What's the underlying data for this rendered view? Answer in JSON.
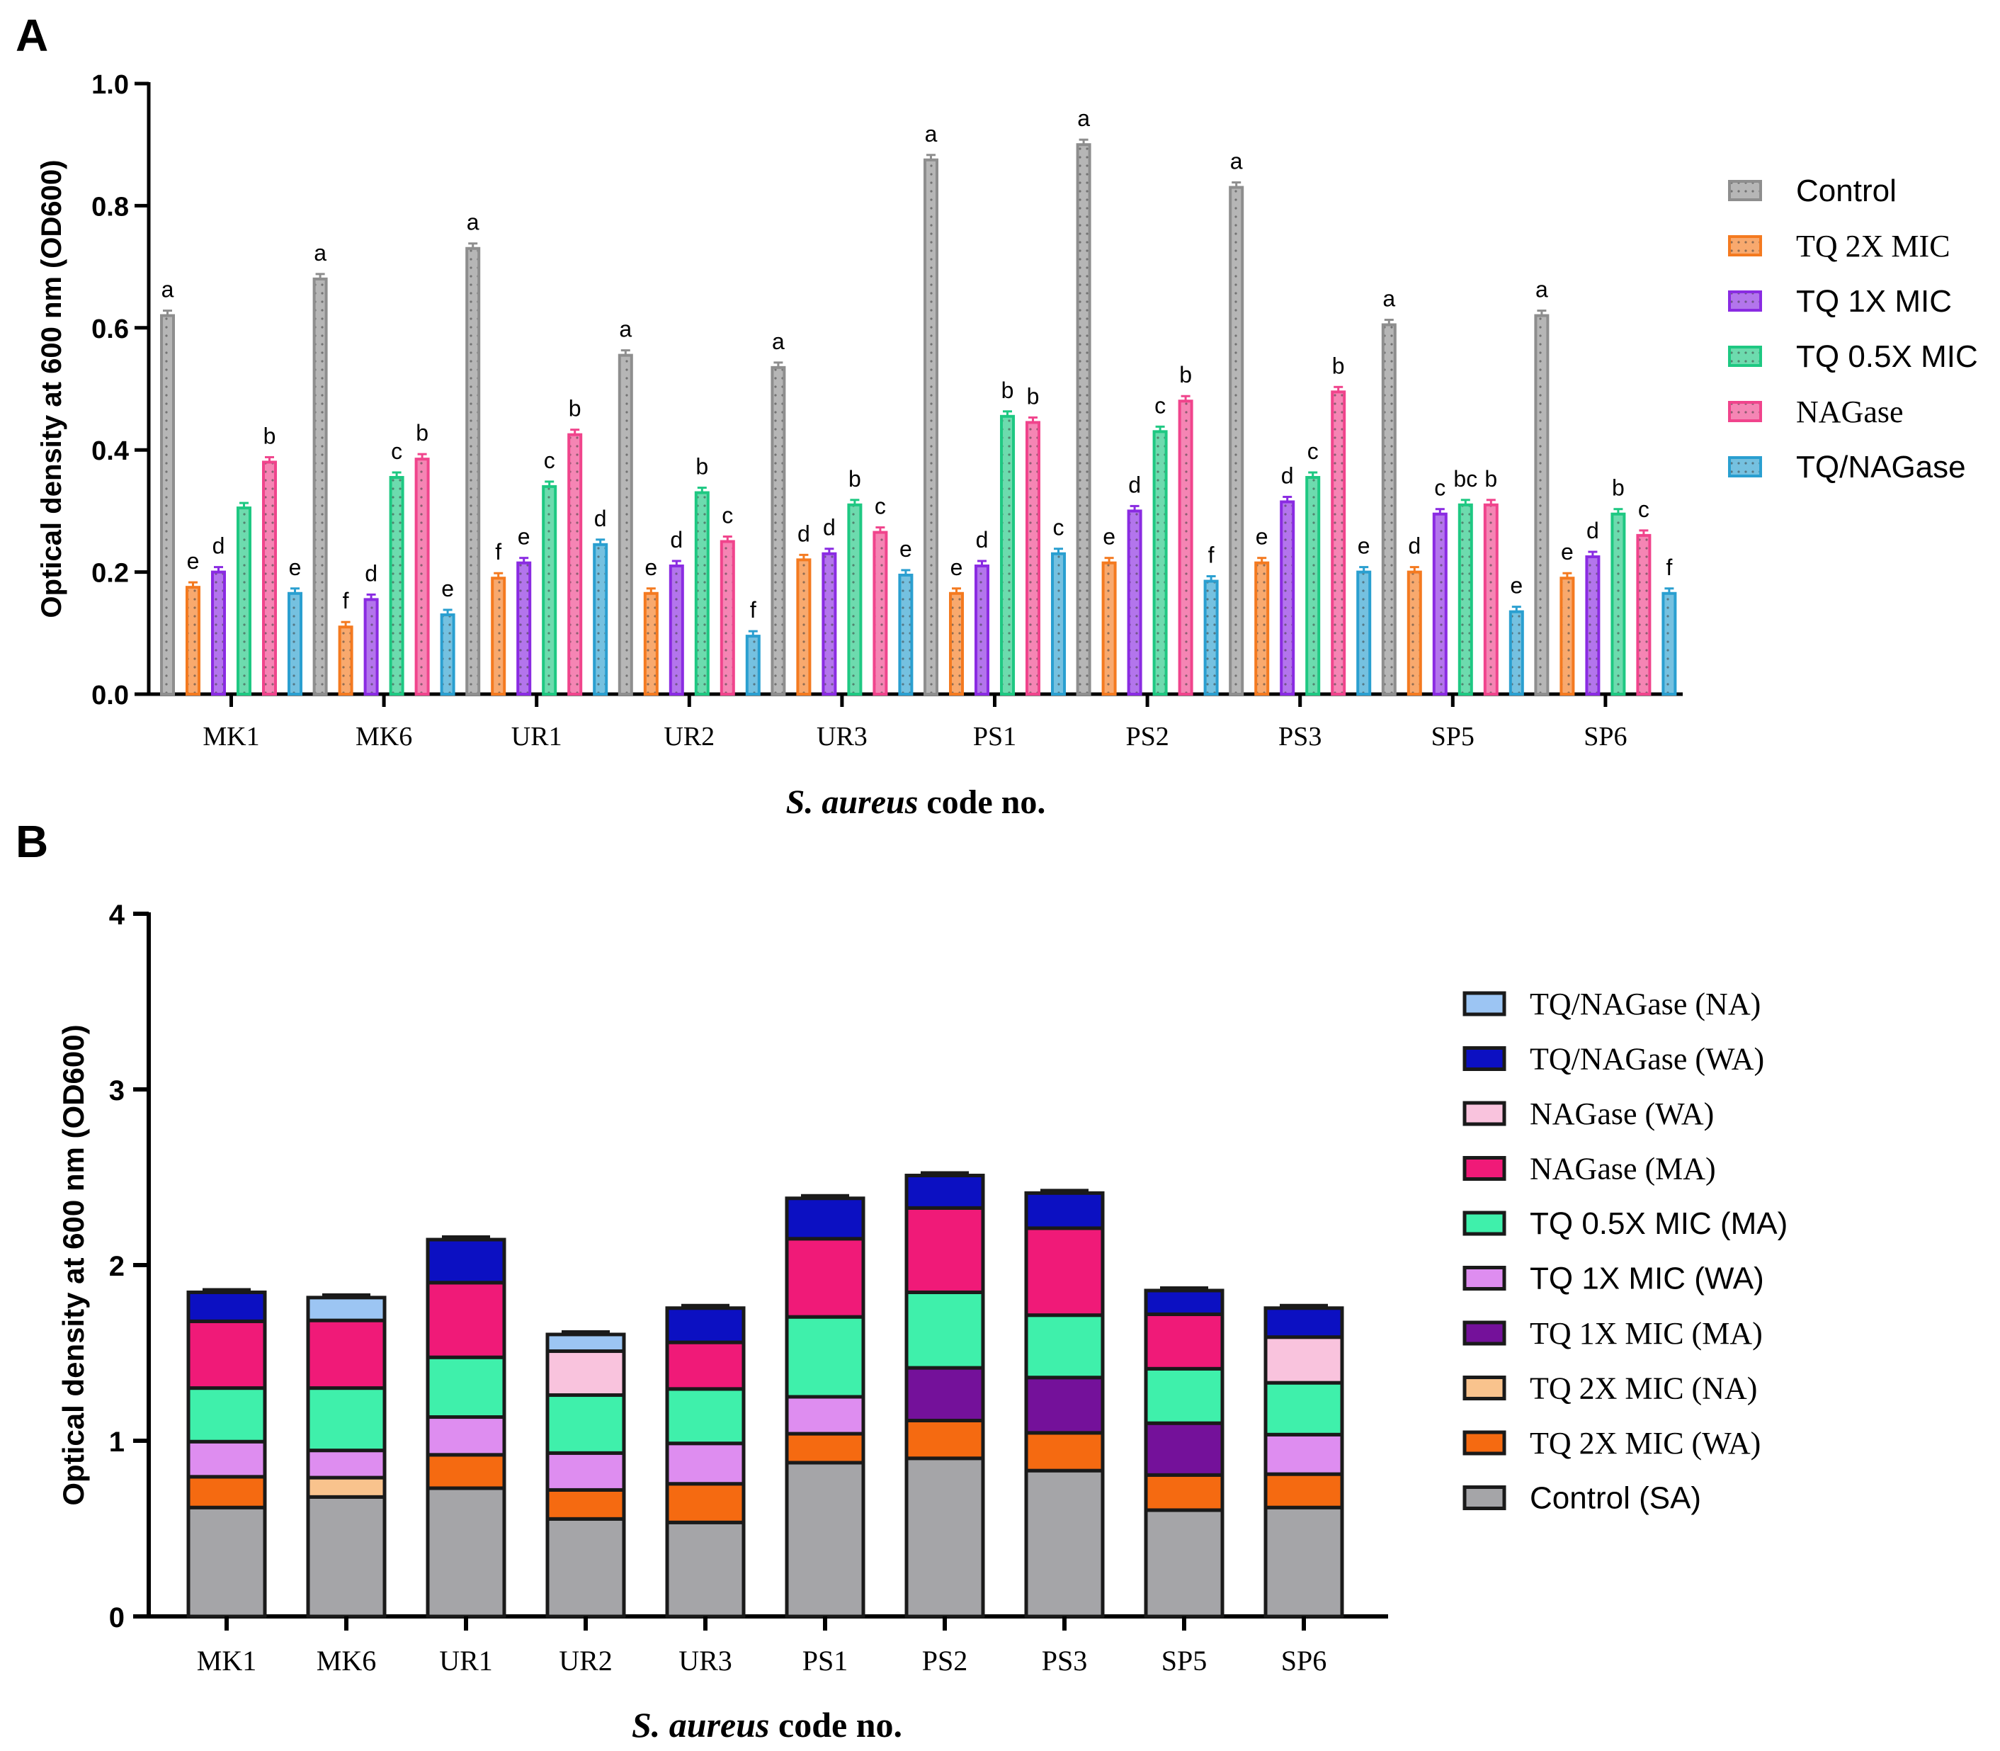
{
  "panels": {
    "a": {
      "letter": "A"
    },
    "b": {
      "letter": "B"
    }
  },
  "colors": {
    "Control": "#8e8e8e",
    "TQ 2X MIC": "#f47a20",
    "TQ 1X MIC": "#8a2be2",
    "TQ 0.5X MIC": "#1ec882",
    "NAGase": "#f0448c",
    "TQ/NAGase": "#2a9fd0"
  },
  "chart_data": [
    {
      "id": "A",
      "type": "bar",
      "title": "",
      "xlabel_italic": "S. aureus",
      "xlabel_rest": " code no.",
      "ylabel": "Optical density at 600 nm (OD600)",
      "ylim": [
        0,
        1.0
      ],
      "yticks": [
        "0.0",
        "0.2",
        "0.4",
        "0.6",
        "0.8",
        "1.0"
      ],
      "legend_position": "right",
      "categories": [
        "MK1",
        "MK6",
        "UR1",
        "UR2",
        "UR3",
        "PS1",
        "PS2",
        "PS3",
        "SP5",
        "SP6"
      ],
      "series": [
        {
          "name": "Control",
          "color": "#8e8e8e",
          "values": [
            0.62,
            0.68,
            0.73,
            0.555,
            0.535,
            0.875,
            0.9,
            0.83,
            0.605,
            0.62
          ],
          "letters": [
            "a",
            "a",
            "a",
            "a",
            "a",
            "a",
            "a",
            "a",
            "a",
            "a"
          ]
        },
        {
          "name": "TQ 2X MIC",
          "color": "#f47a20",
          "values": [
            0.175,
            0.11,
            0.19,
            0.165,
            0.22,
            0.165,
            0.215,
            0.215,
            0.2,
            0.19
          ],
          "letters": [
            "e",
            "f",
            "f",
            "e",
            "d",
            "e",
            "e",
            "e",
            "d",
            "e"
          ]
        },
        {
          "name": "TQ 1X MIC",
          "color": "#8a2be2",
          "values": [
            0.2,
            0.155,
            0.215,
            0.21,
            0.23,
            0.21,
            0.3,
            0.315,
            0.295,
            0.225
          ],
          "letters": [
            "d",
            "d",
            "e",
            "d",
            "d",
            "d",
            "d",
            "d",
            "c",
            "d"
          ]
        },
        {
          "name": "TQ 0.5X MIC",
          "color": "#1ec882",
          "values": [
            0.305,
            0.355,
            0.34,
            0.33,
            0.31,
            0.455,
            0.43,
            0.355,
            0.31,
            0.295
          ],
          "letters": [
            "",
            "c",
            "c",
            "b",
            "b",
            "b",
            "c",
            "c",
            "bc",
            "b"
          ]
        },
        {
          "name": "NAGase",
          "color": "#f0448c",
          "values": [
            0.38,
            0.385,
            0.425,
            0.25,
            0.265,
            0.445,
            0.48,
            0.495,
            0.31,
            0.26
          ],
          "letters": [
            "b",
            "b",
            "b",
            "c",
            "c",
            "b",
            "b",
            "b",
            "b",
            "c"
          ]
        },
        {
          "name": "TQ/NAGase",
          "color": "#2a9fd0",
          "values": [
            0.165,
            0.13,
            0.245,
            0.095,
            0.195,
            0.23,
            0.185,
            0.2,
            0.135,
            0.165
          ],
          "letters": [
            "e",
            "e",
            "d",
            "f",
            "e",
            "c",
            "f",
            "e",
            "e",
            "f"
          ]
        }
      ]
    },
    {
      "id": "B",
      "type": "bar",
      "stacked": true,
      "title": "",
      "xlabel_italic": "S. aureus",
      "xlabel_rest": " code no.",
      "ylabel": "Optical density at 600 nm (OD600)",
      "ylim": [
        0,
        4
      ],
      "yticks": [
        "0",
        "1",
        "2",
        "3",
        "4"
      ],
      "legend_position": "right",
      "categories": [
        "MK1",
        "MK6",
        "UR1",
        "UR2",
        "UR3",
        "PS1",
        "PS2",
        "PS3",
        "SP5",
        "SP6"
      ],
      "series": [
        {
          "name": "Control (SA)",
          "color": "#a5a5a8",
          "values": [
            0.62,
            0.68,
            0.73,
            0.555,
            0.535,
            0.875,
            0.9,
            0.83,
            0.605,
            0.62
          ]
        },
        {
          "name": "TQ 2X MIC (WA)",
          "color": "#f56a11",
          "values": [
            0.175,
            0,
            0.19,
            0.165,
            0.22,
            0.165,
            0.215,
            0.215,
            0.2,
            0.19
          ]
        },
        {
          "name": "TQ 2X MIC (NA)",
          "color": "#f9c38d",
          "values": [
            0,
            0.11,
            0,
            0,
            0,
            0,
            0,
            0,
            0,
            0
          ]
        },
        {
          "name": "TQ 1X MIC (MA)",
          "color": "#74119a",
          "values": [
            0,
            0,
            0,
            0,
            0,
            0,
            0.3,
            0.315,
            0.295,
            0
          ]
        },
        {
          "name": "TQ 1X MIC (WA)",
          "color": "#de8df0",
          "values": [
            0.2,
            0.155,
            0.215,
            0.21,
            0.23,
            0.21,
            0,
            0,
            0,
            0.225
          ]
        },
        {
          "name": "TQ 0.5X MIC (MA)",
          "color": "#3ff0ab",
          "values": [
            0.305,
            0.355,
            0.34,
            0.33,
            0.31,
            0.455,
            0.43,
            0.355,
            0.31,
            0.295
          ]
        },
        {
          "name": "NAGase (MA)",
          "color": "#f01a78",
          "values": [
            0.38,
            0.385,
            0.425,
            0,
            0.265,
            0.445,
            0.48,
            0.495,
            0.31,
            0
          ]
        },
        {
          "name": "NAGase (WA)",
          "color": "#f9c3dd",
          "values": [
            0,
            0,
            0,
            0.25,
            0,
            0,
            0,
            0,
            0,
            0.26
          ]
        },
        {
          "name": "TQ/NAGase (WA)",
          "color": "#0c10c2",
          "values": [
            0.165,
            0,
            0.245,
            0,
            0.195,
            0.23,
            0.185,
            0.2,
            0.135,
            0.165
          ]
        },
        {
          "name": "TQ/NAGase (NA)",
          "color": "#9cc5f3",
          "values": [
            0,
            0.13,
            0,
            0.095,
            0,
            0,
            0,
            0,
            0,
            0
          ]
        }
      ],
      "legend_order": [
        "TQ/NAGase (NA)",
        "TQ/NAGase (WA)",
        "NAGase (WA)",
        "NAGase (MA)",
        "TQ 0.5X MIC (MA)",
        "TQ 1X MIC (WA)",
        "TQ 1X MIC (MA)",
        "TQ 2X MIC (NA)",
        "TQ 2X MIC (WA)",
        "Control (SA)"
      ],
      "legend_serif": [
        "TQ/NAGase (NA)",
        "TQ/NAGase (WA)",
        "NAGase (WA)",
        "NAGase (MA)",
        "TQ 1X MIC (MA)",
        "TQ 2X MIC (NA)",
        "TQ 2X MIC (WA)"
      ]
    }
  ]
}
